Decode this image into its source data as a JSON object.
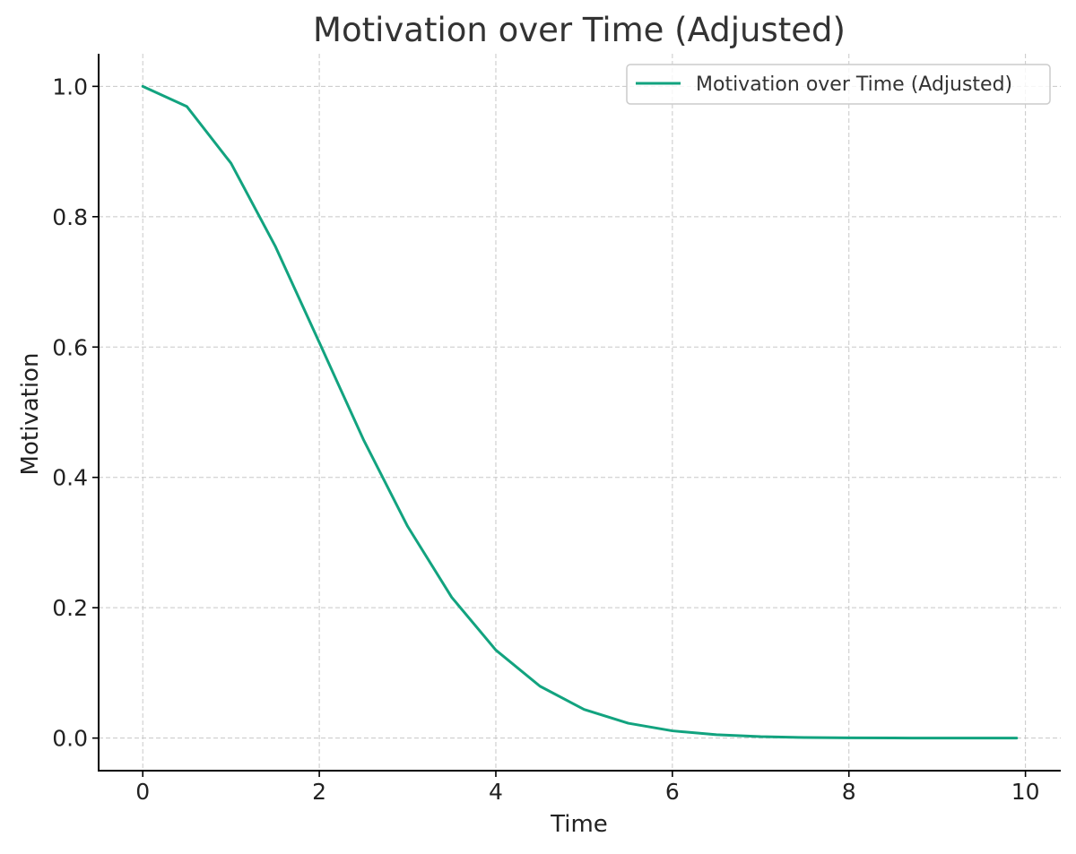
{
  "chart_data": {
    "type": "line",
    "title": "Motivation over Time (Adjusted)",
    "xlabel": "Time",
    "ylabel": "Motivation",
    "xlim": [
      -0.5,
      10.4
    ],
    "ylim": [
      -0.05,
      1.05
    ],
    "xticks": [
      0,
      2,
      4,
      6,
      8,
      10
    ],
    "xtick_labels": [
      "0",
      "2",
      "4",
      "6",
      "8",
      "10"
    ],
    "yticks": [
      0.0,
      0.2,
      0.4,
      0.6,
      0.8,
      1.0
    ],
    "ytick_labels": [
      "0.0",
      "0.2",
      "0.4",
      "0.6",
      "0.8",
      "1.0"
    ],
    "grid": true,
    "legend_position": "top-right",
    "series": [
      {
        "name": "Motivation over Time (Adjusted)",
        "color": "#12a37f",
        "x": [
          0,
          0.5,
          1,
          1.5,
          2,
          2.5,
          3,
          3.5,
          4,
          4.5,
          5,
          5.5,
          6,
          6.5,
          7,
          7.5,
          8,
          8.5,
          9,
          9.5,
          9.9
        ],
        "y": [
          1.0,
          0.969,
          0.882,
          0.755,
          0.607,
          0.458,
          0.325,
          0.216,
          0.135,
          0.0796,
          0.0439,
          0.0228,
          0.0111,
          0.00509,
          0.00219,
          0.00088,
          0.00034,
          0.00012,
          4e-05,
          1e-05,
          0.0
        ]
      }
    ]
  }
}
